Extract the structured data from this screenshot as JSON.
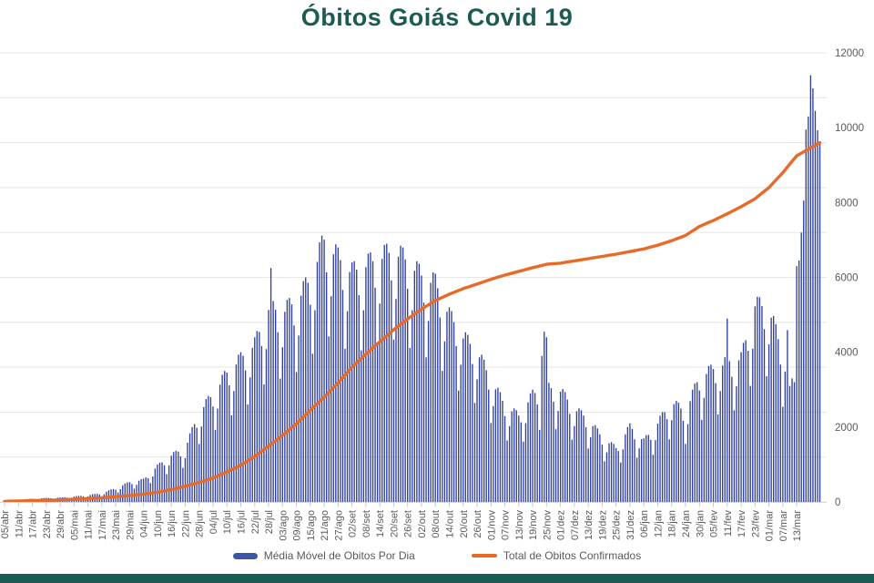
{
  "title": "Óbitos Goiás Covid 19",
  "legend": {
    "bars_label": "Média Móvel de Obitos Por Dia",
    "line_label": "Total de Obitos Confirmados"
  },
  "colors": {
    "teal": "#1d5b52",
    "bar_blue": "#2f3f9e",
    "line_orange": "#e86a28",
    "axis_text": "#5a5a5a",
    "gridline": "#e8e7e3",
    "legend_text": "#595959",
    "legend_swatch_blue": "#3a56a6"
  },
  "chart_data": {
    "type": "bar",
    "subtype": "daily bars with cumulative line overlay",
    "x_labels": [
      "05/abr",
      "11/abr",
      "17/abr",
      "23/abr",
      "29/abr",
      "05/mai",
      "11/mai",
      "17/mai",
      "23/mai",
      "29/mai",
      "04/jun",
      "10/jun",
      "16/jun",
      "22/jun",
      "28/jun",
      "04/jul",
      "10/jul",
      "16/jul",
      "22/jul",
      "28/jul",
      "03/ago",
      "09/ago",
      "15/ago",
      "21/ago",
      "27/ago",
      "02/set",
      "08/set",
      "14/set",
      "20/set",
      "26/set",
      "02/out",
      "08/out",
      "14/out",
      "20/out",
      "26/out",
      "01/nov",
      "07/nov",
      "13/nov",
      "19/nov",
      "25/nov",
      "01/dez",
      "07/dez",
      "13/dez",
      "19/dez",
      "25/dez",
      "31/dez",
      "06/jan",
      "12/jan",
      "18/jan",
      "24/jan",
      "30/jan",
      "05/fev",
      "11/fev",
      "17/fev",
      "23/fev",
      "01/mar",
      "07/mar",
      "13/mar"
    ],
    "days_per_label": 6,
    "y_axis": {
      "side": "right",
      "min": 0,
      "max": 12000,
      "tick_step": 2000,
      "ticks": [
        0,
        2000,
        4000,
        6000,
        8000,
        10000,
        12000
      ],
      "gridlines_count": 11,
      "grid_on": true
    },
    "legend_position": "bottom",
    "series": [
      {
        "name": "Média Móvel de Obitos Por Dia",
        "type": "bar",
        "color": "#2f3f9e",
        "envelope_at_labels": [
          40,
          60,
          90,
          110,
          120,
          150,
          190,
          240,
          380,
          550,
          620,
          1000,
          1300,
          1500,
          2500,
          3000,
          3600,
          4000,
          4400,
          5400,
          5300,
          5600,
          6200,
          7300,
          6800,
          6400,
          6600,
          6800,
          7000,
          6700,
          6300,
          6100,
          5200,
          4600,
          4200,
          3400,
          2700,
          2400,
          3000,
          3200,
          3100,
          2600,
          2300,
          1800,
          1500,
          2100,
          1700,
          2200,
          2800,
          2500,
          3500,
          3700,
          3900,
          4000,
          5500,
          5400,
          4100,
          6300
        ],
        "weekly_factors": [
          0.62,
          0.78,
          0.95,
          1.0,
          1.0,
          0.96,
          0.85
        ],
        "overrides": {
          "115": 6250,
          "232": 3900,
          "233": 4550,
          "234": 4400,
          "312": 4900,
          "339": 3100,
          "340": 3300,
          "341": 3200,
          "342": 6300
        },
        "tail_daily": {
          "start_day": 343,
          "values": [
            6450,
            7200,
            8050,
            9950,
            10300,
            11400,
            11050,
            10450,
            9930,
            9600
          ]
        }
      },
      {
        "name": "Total de Obitos Confirmados",
        "type": "line",
        "color": "#e86a28",
        "values_at_labels": [
          15,
          25,
          35,
          45,
          55,
          70,
          90,
          110,
          140,
          170,
          210,
          260,
          330,
          420,
          520,
          640,
          800,
          980,
          1220,
          1490,
          1780,
          2090,
          2450,
          2800,
          3180,
          3600,
          3950,
          4280,
          4600,
          4890,
          5150,
          5380,
          5550,
          5700,
          5820,
          5950,
          6060,
          6160,
          6260,
          6350,
          6380,
          6440,
          6500,
          6560,
          6620,
          6690,
          6760,
          6860,
          6980,
          7120,
          7360,
          7520,
          7700,
          7890,
          8100,
          8400,
          8800,
          9250
        ],
        "end_day": 352,
        "end_value": 9600
      }
    ]
  }
}
